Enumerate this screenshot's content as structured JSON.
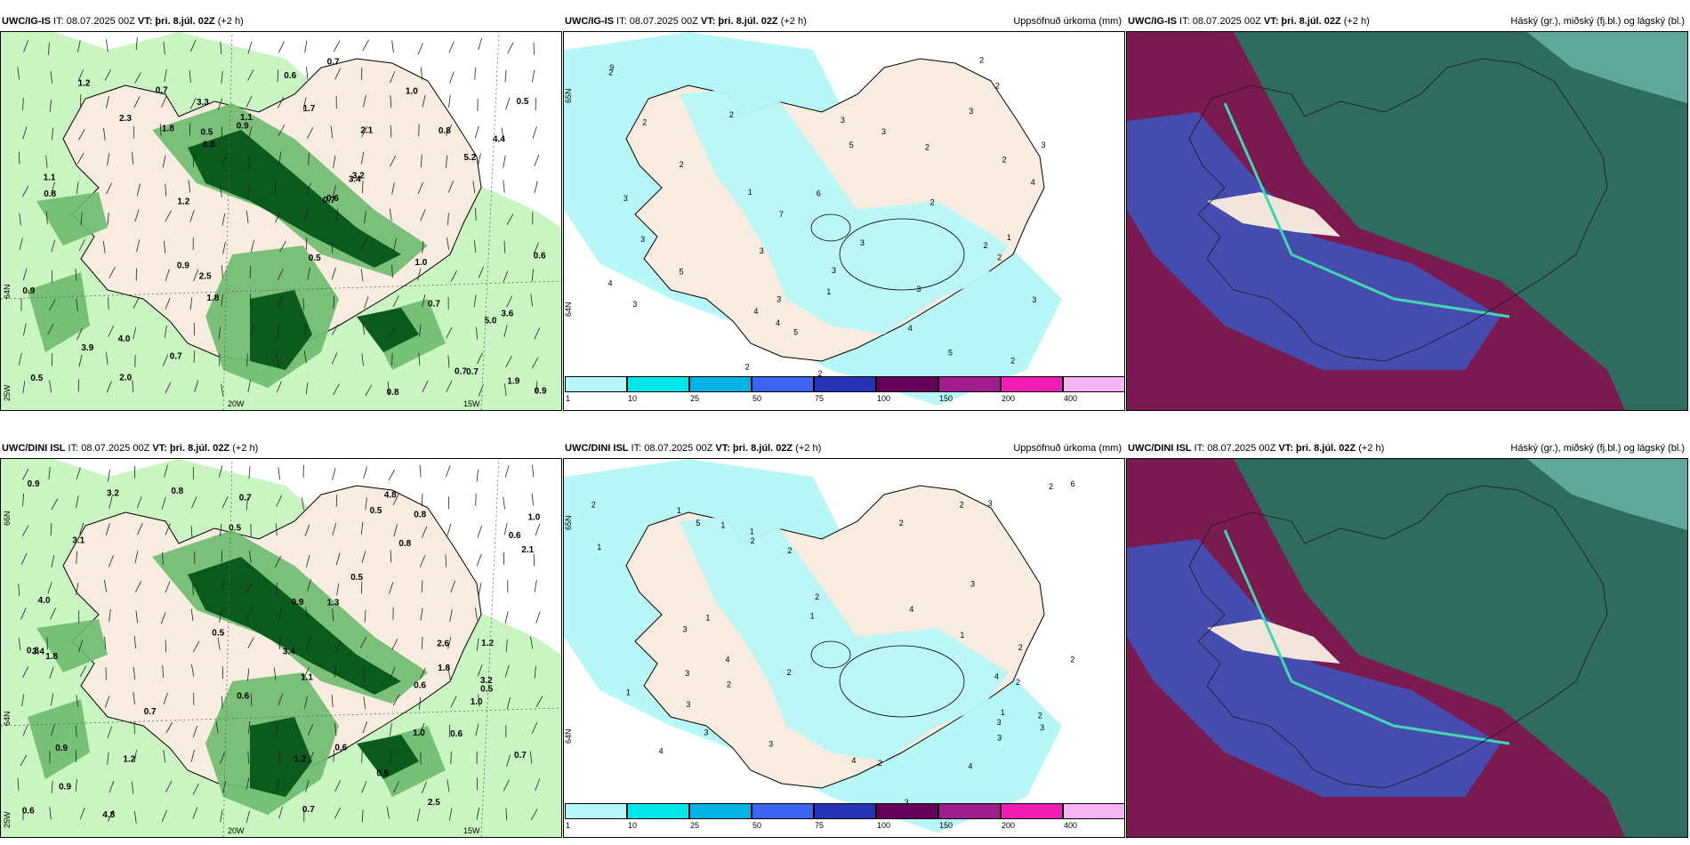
{
  "colors": {
    "land": "#f8ece0",
    "sea": "#ffffff",
    "precip_light": "#c9f5c0",
    "precip_mid": "#6dbb6d",
    "precip_dark": "#0b5a1e",
    "accum": "#b8f7f7",
    "cloud_high": "#2f6b5f",
    "cloud_mid": "#3f52b8",
    "cloud_low": "#7a1a50"
  },
  "rows": [
    {
      "model": "UWC/IG-IS",
      "panels": [
        {
          "id": "wind",
          "model": "UWC/IG-IS",
          "it_label": "IT:",
          "it": "08.07.2025 00Z",
          "vt_label": "VT: þri. 8.júl. 02Z",
          "lead": "(+2 h)",
          "title_right": "",
          "values": [
            "1.0",
            "0.9",
            "0.7",
            "5.0",
            "3.6",
            "1.2",
            "0.8",
            "0.5",
            "0.7",
            "0.6",
            "1.1",
            "3.9",
            "3.4",
            "2.1",
            "1.8",
            "0.9",
            "0.6",
            "3.2",
            "2.0",
            "1.0",
            "0.5",
            "0.7",
            "0.9",
            "0.8",
            "1.1",
            "1.9",
            "1.8",
            "0.7",
            "0.5",
            "4.4",
            "5.2",
            "0.7",
            "0.5",
            "0.7",
            "0.8",
            "0.9",
            "1.2",
            "2.3",
            "4.0",
            "2.5",
            "3.3",
            "0.7",
            "0.8",
            "0.6",
            "1.7"
          ]
        },
        {
          "id": "accum",
          "model": "UWC/IG-IS",
          "it_label": "IT:",
          "it": "08.07.2025 00Z",
          "vt_label": "VT: þri. 8.júl. 02Z",
          "lead": "(+2 h)",
          "title_right": "Uppsöfnuð úrkoma (mm)",
          "values": [
            "3",
            "2",
            "3",
            "4",
            "3",
            "2",
            "5",
            "6",
            "3",
            "2",
            "2",
            "1",
            "3",
            "3",
            "4",
            "9",
            "5",
            "3",
            "4",
            "3",
            "2",
            "2",
            "3",
            "2",
            "1",
            "2",
            "3",
            "7",
            "4",
            "5",
            "5",
            "4",
            "2",
            "2",
            "3",
            "1",
            "2",
            "2",
            "3",
            "2",
            "3",
            "2"
          ]
        },
        {
          "id": "cloud",
          "model": "UWC/IG-IS",
          "it_label": "IT:",
          "it": "08.07.2025 00Z",
          "vt_label": "VT: þri. 8.júl. 02Z",
          "lead": "(+2 h)",
          "title_right": "Háský (gr.), miðský (fj.bl.) og lágský (bl.)",
          "values": []
        }
      ]
    },
    {
      "model": "UWC/DINI ISL",
      "panels": [
        {
          "id": "wind",
          "model": "UWC/DINI ISL",
          "it_label": "IT:",
          "it": "08.07.2025 00Z",
          "vt_label": "VT: þri. 8.júl. 02Z",
          "lead": "(+2 h)",
          "title_right": "",
          "values": [
            "0.6",
            "0.5",
            "0.9",
            "1.1",
            "0.5",
            "1.0",
            "0.7",
            "0.5",
            "0.6",
            "0.8",
            "1.3",
            "1.2",
            "0.9",
            "1.0",
            "0.6",
            "3.2",
            "2.6",
            "3.1",
            "3.4",
            "0.8",
            "0.5",
            "0.7",
            "1.0",
            "1.8",
            "4.8",
            "3.2",
            "3.4",
            "1.2",
            "2.5",
            "0.5",
            "0.7",
            "0.8",
            "0.9",
            "4.8",
            "0.5",
            "0.6",
            "0.8",
            "0.6",
            "4.0",
            "2.1",
            "0.7",
            "0.6",
            "1.2",
            "1.8",
            "0.9"
          ]
        },
        {
          "id": "accum",
          "model": "UWC/DINI ISL",
          "it_label": "IT:",
          "it": "08.07.2025 00Z",
          "vt_label": "VT: þri. 8.júl. 02Z",
          "lead": "(+2 h)",
          "title_right": "Uppsöfnuð úrkoma (mm)",
          "values": [
            "2",
            "1",
            "1",
            "3",
            "2",
            "2",
            "3",
            "4",
            "1",
            "2",
            "2",
            "3",
            "3",
            "4",
            "2",
            "3",
            "1",
            "3",
            "6",
            "4",
            "2",
            "3",
            "4",
            "5",
            "1",
            "3",
            "1",
            "2",
            "2",
            "4",
            "3",
            "2",
            "3",
            "1",
            "2",
            "1",
            "2",
            "2",
            "4",
            "3",
            "2",
            "1"
          ]
        },
        {
          "id": "cloud",
          "model": "UWC/DINI ISL",
          "it_label": "IT:",
          "it": "08.07.2025 00Z",
          "vt_label": "VT: þri. 8.júl. 02Z",
          "lead": "(+2 h)",
          "title_right": "Háský (gr.), miðský (fj.bl.) og lágský (bl.)",
          "values": []
        }
      ]
    }
  ],
  "legend": {
    "labels": [
      "1",
      "10",
      "25",
      "50",
      "75",
      "100",
      "150",
      "200",
      "400"
    ],
    "colors": [
      "#b8f7f7",
      "#00e6e6",
      "#00b4e6",
      "#3c64f0",
      "#2832b4",
      "#64005a",
      "#a01e8c",
      "#f01eb4",
      "#f5b4f5"
    ]
  },
  "axes": {
    "wind_bottom": [
      "20W",
      "15W"
    ],
    "wind_left": [
      "64N",
      "25W"
    ],
    "wind_left_top": "66N",
    "accum_left": [
      "65N",
      "64N"
    ]
  }
}
